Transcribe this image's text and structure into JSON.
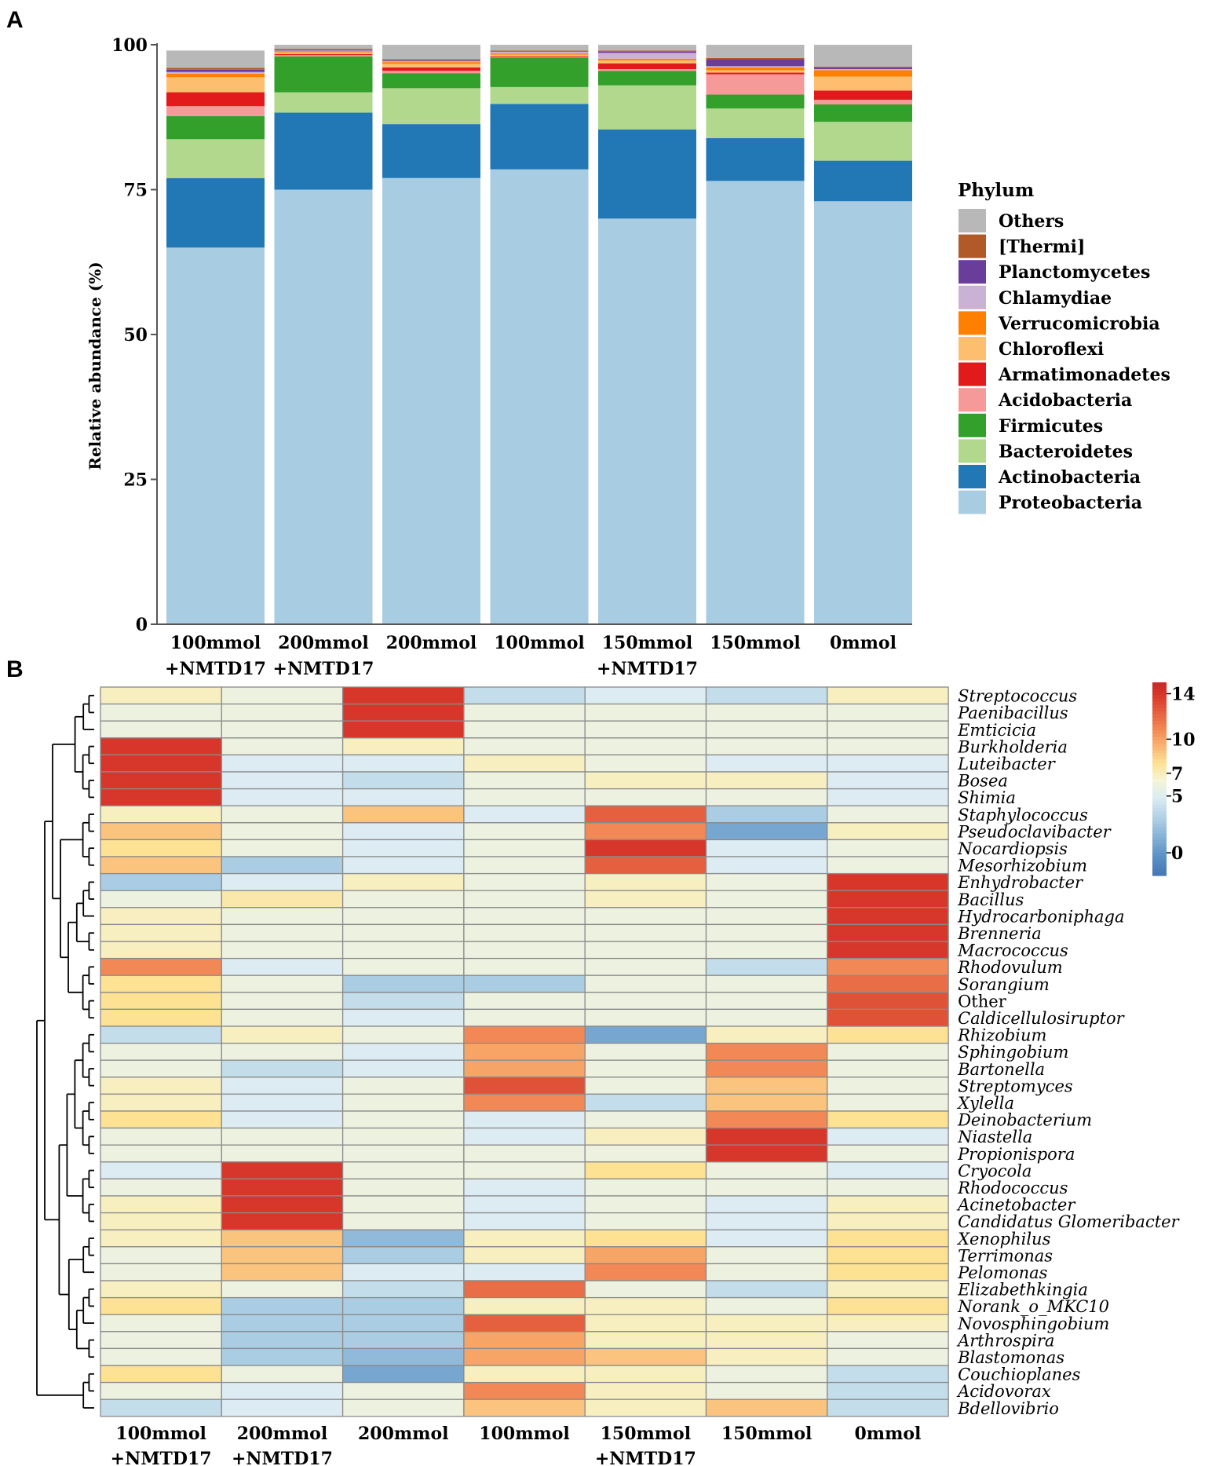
{
  "panel_a_label": "A",
  "panel_b_label": "B",
  "chart_data": [
    {
      "type": "bar",
      "stacked": true,
      "ylabel": "Relative abundance (%)",
      "ylim": [
        0,
        100
      ],
      "yticks": [
        "0",
        "25",
        "50",
        "75",
        "100"
      ],
      "legend_title": "Phylum",
      "legend_position": "right",
      "categories": [
        [
          "100mmol",
          "+NMTD17"
        ],
        [
          "200mmol",
          "+NMTD17"
        ],
        [
          "200mmol"
        ],
        [
          "100mmol"
        ],
        [
          "150mmol",
          "+NMTD17"
        ],
        [
          "150mmol"
        ],
        [
          "0mmol"
        ]
      ],
      "series": [
        {
          "name": "Proteobacteria",
          "color": "#a8cde2",
          "values": [
            65.0,
            75.0,
            77.0,
            78.5,
            70.0,
            76.5,
            73.0
          ]
        },
        {
          "name": "Actinobacteria",
          "color": "#2278b5",
          "values": [
            12.0,
            13.3,
            9.3,
            11.3,
            15.4,
            7.4,
            7.0
          ]
        },
        {
          "name": "Bacteroidetes",
          "color": "#b2d88d",
          "values": [
            6.7,
            3.5,
            6.2,
            2.9,
            7.6,
            5.1,
            6.7
          ]
        },
        {
          "name": "Firmicutes",
          "color": "#33a02c",
          "values": [
            4.0,
            6.2,
            2.6,
            5.0,
            2.5,
            2.4,
            3.0
          ]
        },
        {
          "name": "Acidobacteria",
          "color": "#f69999",
          "values": [
            1.7,
            0.2,
            0.4,
            0.1,
            0.3,
            3.5,
            0.8
          ]
        },
        {
          "name": "Armatimonadetes",
          "color": "#e31a1c",
          "values": [
            2.4,
            0.2,
            0.6,
            0.2,
            1.0,
            0.3,
            1.6
          ]
        },
        {
          "name": "Chloroflexi",
          "color": "#fdbf6f",
          "values": [
            2.6,
            0.3,
            0.6,
            0.3,
            0.5,
            0.4,
            2.4
          ]
        },
        {
          "name": "Verrucomicrobia",
          "color": "#ff7f00",
          "values": [
            0.6,
            0.2,
            0.3,
            0.2,
            0.3,
            0.5,
            1.1
          ]
        },
        {
          "name": "Chlamydiae",
          "color": "#cab2d6",
          "values": [
            0.3,
            0.1,
            0.2,
            0.3,
            1.0,
            0.2,
            0.2
          ]
        },
        {
          "name": "Planctomycetes",
          "color": "#6a3d9a",
          "values": [
            0.4,
            0.1,
            0.1,
            0.1,
            0.2,
            1.2,
            0.2
          ]
        },
        {
          "name": "[Thermi]",
          "color": "#b15928",
          "values": [
            0.3,
            0.2,
            0.2,
            0.1,
            0.2,
            0.2,
            0.2
          ]
        },
        {
          "name": "Others",
          "color": "#b8b8b8",
          "values": [
            3.0,
            0.7,
            2.5,
            1.0,
            1.0,
            2.3,
            3.8
          ]
        }
      ]
    },
    {
      "type": "heatmap",
      "colorbar": {
        "ticks": [
          0,
          5,
          7,
          10,
          14
        ],
        "tick_labels": [
          "0",
          "5",
          "7",
          "10",
          "14"
        ],
        "range": [
          -2,
          15
        ]
      },
      "columns": [
        [
          "100mmol",
          "+NMTD17"
        ],
        [
          "200mmol",
          "+NMTD17"
        ],
        [
          "200mmol"
        ],
        [
          "100mmol"
        ],
        [
          "150mmol",
          "+NMTD17"
        ],
        [
          "150mmol"
        ],
        [
          "0mmol"
        ]
      ],
      "rows": [
        "Streptococcus",
        "Paenibacillus",
        "Emticicia",
        "Burkholderia",
        "Luteibacter",
        "Bosea",
        "Shimia",
        "Staphylococcus",
        "Pseudoclavibacter",
        "Nocardiopsis",
        "Mesorhizobium",
        "Enhydrobacter",
        "Bacillus",
        "Hydrocarboniphaga",
        "Brenneria",
        "Macrococcus",
        "Rhodovulum",
        "Sorangium",
        "Other",
        "Caldicellulosiruptor",
        "Rhizobium",
        "Sphingobium",
        "Bartonella",
        "Streptomyces",
        "Xylella",
        "Deinobacterium",
        "Niastella",
        "Propionispora",
        "Cryocola",
        "Rhodococcus",
        "Acinetobacter",
        "Candidatus Glomeribacter",
        "Xenophilus",
        "Terrimonas",
        "Pelomonas",
        "Elizabethkingia",
        "Norank_o_MKC10",
        "Novosphingobium",
        "Arthrospira",
        "Blastomonas",
        "Couchioplanes",
        "Acidovorax",
        "Bdellovibrio"
      ],
      "values": [
        [
          7,
          6,
          14,
          4,
          5,
          4,
          7
        ],
        [
          6,
          6,
          14,
          6,
          6,
          6,
          6
        ],
        [
          6,
          6,
          14,
          6,
          6,
          6,
          6
        ],
        [
          14,
          6,
          7,
          6,
          6,
          6,
          6
        ],
        [
          14,
          5,
          5,
          7,
          6,
          5,
          5
        ],
        [
          14,
          5,
          4,
          6,
          7,
          7,
          5
        ],
        [
          14,
          5,
          5,
          6,
          6,
          6,
          5
        ],
        [
          7,
          6,
          9,
          5,
          12.5,
          3,
          6
        ],
        [
          9,
          6,
          5,
          6,
          11,
          1,
          7
        ],
        [
          8,
          6,
          5,
          6,
          14,
          5,
          6
        ],
        [
          9,
          3,
          5,
          6,
          12.5,
          5,
          6
        ],
        [
          3,
          5,
          7,
          6,
          7,
          6,
          14
        ],
        [
          6,
          7.5,
          6,
          6,
          7,
          6,
          14
        ],
        [
          7,
          6,
          6,
          6,
          6,
          6,
          14
        ],
        [
          7,
          6,
          6,
          6,
          6,
          6,
          14
        ],
        [
          7,
          6,
          6,
          6,
          6,
          6,
          14
        ],
        [
          11,
          5,
          6,
          6,
          6,
          4,
          11
        ],
        [
          8,
          6,
          3,
          3,
          6,
          6,
          12
        ],
        [
          8,
          6,
          4,
          6,
          6,
          6,
          13
        ],
        [
          8,
          6,
          5,
          6,
          6,
          6,
          13
        ],
        [
          4,
          7,
          6,
          11,
          1,
          7,
          8
        ],
        [
          6,
          6,
          5,
          10,
          6,
          11,
          6
        ],
        [
          6,
          4,
          5,
          10,
          6,
          11,
          6
        ],
        [
          7,
          5,
          6,
          13,
          6,
          9,
          6
        ],
        [
          7,
          5,
          6,
          11,
          4,
          9,
          6
        ],
        [
          8,
          5,
          6,
          5,
          6,
          11,
          8
        ],
        [
          6,
          6,
          6,
          5,
          7,
          14,
          5
        ],
        [
          6,
          6,
          6,
          6,
          6,
          14,
          6
        ],
        [
          5,
          14,
          6,
          6,
          8,
          6,
          5
        ],
        [
          6,
          14,
          6,
          5,
          6,
          6,
          6
        ],
        [
          7,
          14,
          6,
          5,
          6,
          5,
          7
        ],
        [
          7,
          14,
          6,
          5,
          6,
          5,
          7
        ],
        [
          7,
          9,
          2,
          7,
          8,
          5,
          8
        ],
        [
          6,
          9,
          3,
          7,
          10,
          6,
          8
        ],
        [
          6,
          9,
          5,
          5,
          11,
          6,
          8
        ],
        [
          7,
          6,
          4,
          12,
          6,
          4,
          7
        ],
        [
          8,
          3,
          3,
          7,
          7,
          6,
          8
        ],
        [
          6,
          3,
          3,
          12.5,
          7,
          7,
          7
        ],
        [
          6,
          3,
          3,
          10,
          7,
          7,
          6
        ],
        [
          6,
          3,
          2,
          10,
          9,
          7,
          6
        ],
        [
          8,
          6,
          1,
          7,
          7,
          6,
          4
        ],
        [
          6,
          5,
          6,
          11,
          7,
          6,
          4
        ],
        [
          4,
          5,
          6,
          9,
          7,
          9,
          4
        ]
      ]
    }
  ]
}
